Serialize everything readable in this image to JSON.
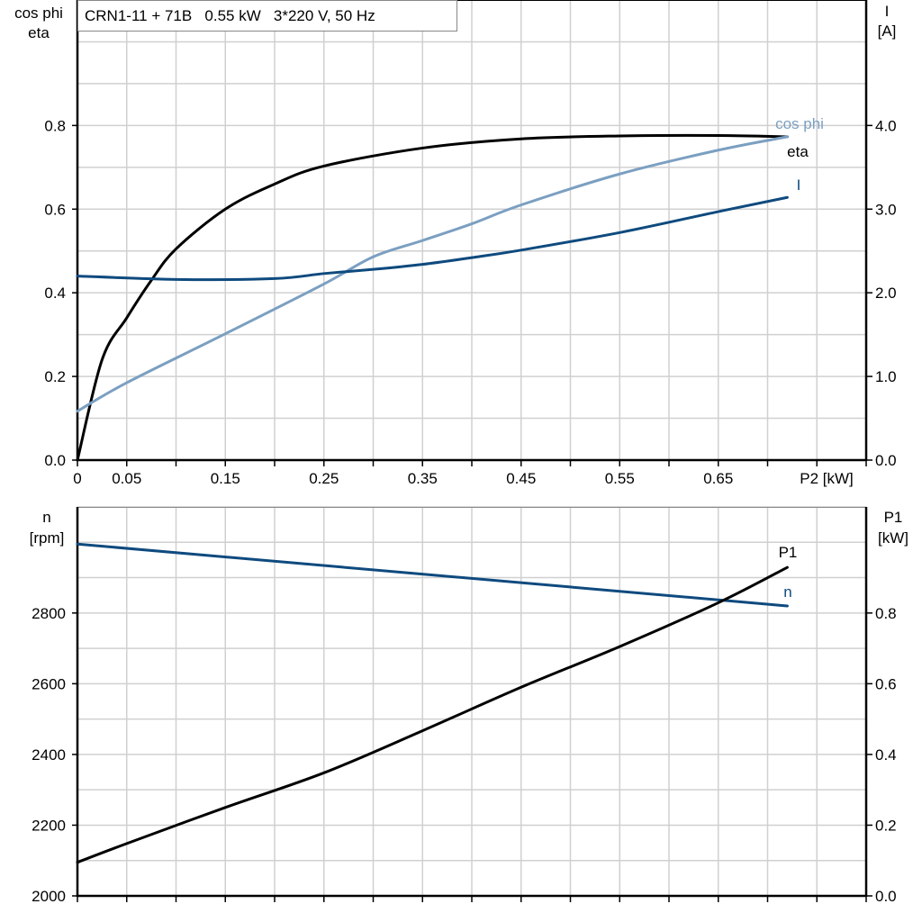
{
  "title": "CRN1-11 + 71B   0.55 kW   3*220 V, 50 Hz",
  "colors": {
    "eta": "#000000",
    "cos_phi": "#7b9fc1",
    "I": "#0e4a7e",
    "n": "#0e4a7e",
    "P1": "#000000",
    "grid": "#d0d0d0"
  },
  "chart_data": [
    {
      "type": "line",
      "xlabel": "P2 [kW]",
      "xlim": [
        0,
        0.8
      ],
      "x_tick_labels": [
        "0",
        "0.05",
        "0.15",
        "0.25",
        "0.35",
        "0.45",
        "0.55",
        "0.65"
      ],
      "x_tick_values": [
        0,
        0.05,
        0.15,
        0.25,
        0.35,
        0.45,
        0.55,
        0.65
      ],
      "ylabel_left": [
        "cos phi",
        "eta"
      ],
      "ylim_left": [
        0,
        1.1
      ],
      "y_tick_labels_left": [
        "0.0",
        "0.2",
        "0.4",
        "0.6",
        "0.8"
      ],
      "ylabel_right": [
        "I",
        "[A]"
      ],
      "ylim_right": [
        0,
        5.5
      ],
      "y_tick_labels_right": [
        "0.0",
        "1.0",
        "2.0",
        "3.0",
        "4.0"
      ],
      "grid": true,
      "series": [
        {
          "name": "eta",
          "axis": "left",
          "x": [
            0,
            0.025,
            0.05,
            0.075,
            0.1,
            0.15,
            0.2,
            0.25,
            0.35,
            0.45,
            0.55,
            0.65,
            0.72
          ],
          "y": [
            0,
            0.24,
            0.34,
            0.43,
            0.505,
            0.6,
            0.66,
            0.703,
            0.746,
            0.768,
            0.775,
            0.776,
            0.773
          ]
        },
        {
          "name": "cos phi",
          "axis": "left",
          "x": [
            0,
            0.05,
            0.15,
            0.25,
            0.3,
            0.35,
            0.4,
            0.45,
            0.55,
            0.65,
            0.72
          ],
          "y": [
            0.117,
            0.185,
            0.302,
            0.421,
            0.486,
            0.525,
            0.565,
            0.61,
            0.684,
            0.741,
            0.773
          ]
        },
        {
          "name": "I",
          "axis": "right",
          "x": [
            0,
            0.1,
            0.2,
            0.25,
            0.3,
            0.35,
            0.4,
            0.45,
            0.55,
            0.65,
            0.72
          ],
          "y": [
            2.2,
            2.16,
            2.17,
            2.23,
            2.28,
            2.34,
            2.42,
            2.51,
            2.72,
            2.97,
            3.14
          ]
        }
      ]
    },
    {
      "type": "line",
      "xlim": [
        0,
        0.8
      ],
      "ylabel_left": [
        "n",
        "[rpm]"
      ],
      "ylim_left": [
        2000,
        3100
      ],
      "y_tick_labels_left": [
        "2000",
        "2200",
        "2400",
        "2600",
        "2800"
      ],
      "ylabel_right": [
        "P1",
        "[kW]"
      ],
      "ylim_right": [
        0,
        1.1
      ],
      "y_tick_labels_right": [
        "0.0",
        "0.2",
        "0.4",
        "0.6",
        "0.8"
      ],
      "grid": true,
      "series": [
        {
          "name": "n",
          "axis": "left",
          "x": [
            0,
            0.72
          ],
          "y": [
            2995,
            2820
          ]
        },
        {
          "name": "P1",
          "axis": "right",
          "x": [
            0,
            0.05,
            0.15,
            0.25,
            0.35,
            0.45,
            0.55,
            0.65,
            0.72
          ],
          "y": [
            0.095,
            0.148,
            0.25,
            0.348,
            0.467,
            0.59,
            0.705,
            0.829,
            0.929
          ]
        }
      ]
    }
  ]
}
